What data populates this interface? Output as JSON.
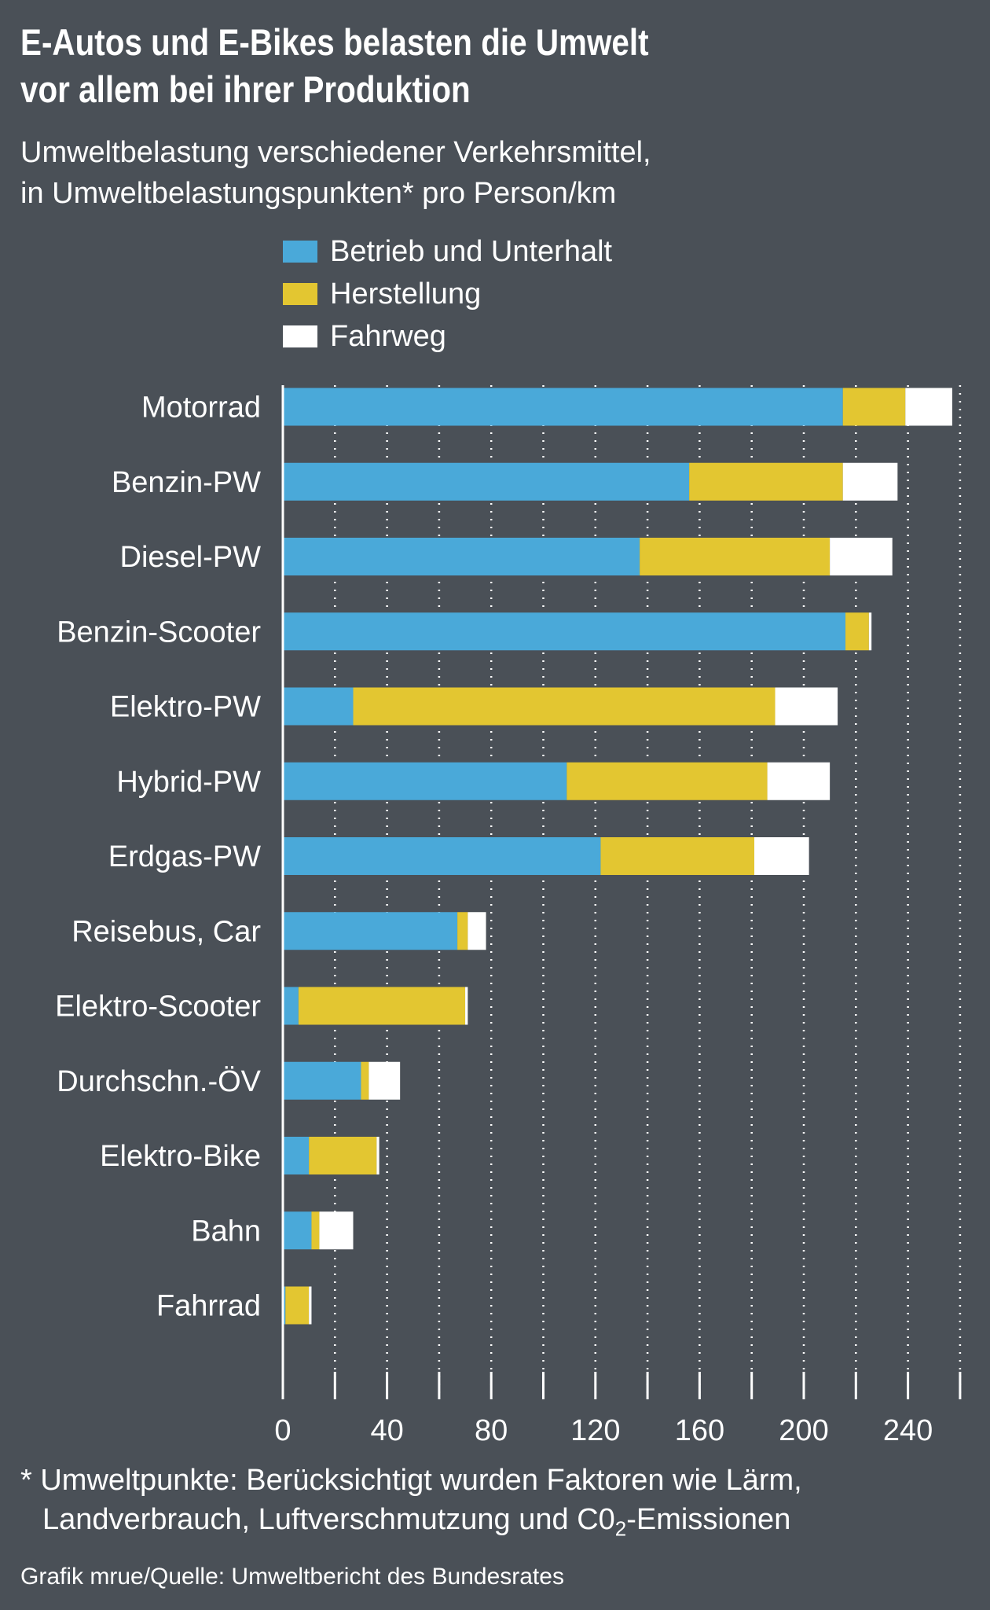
{
  "title_line1": "E-Autos und E-Bikes belasten die Umwelt",
  "title_line2": "vor allem bei ihrer Produktion",
  "subtitle_line1": "Umweltbelastung verschiedener Verkehrsmittel,",
  "subtitle_line2": "in Umweltbelastungspunkten* pro Person/km",
  "legend": [
    {
      "label": "Betrieb und Unterhalt",
      "color": "#4aa9d9"
    },
    {
      "label": "Herstellung",
      "color": "#e3c631"
    },
    {
      "label": "Fahrweg",
      "color": "#ffffff"
    }
  ],
  "footnote_line1": "* Umweltpunkte: Berücksichtigt wurden Faktoren wie Lärm,",
  "footnote_line2_pre": "Landverbrauch, Luftverschmutzung und C0",
  "footnote_line2_sub": "2",
  "footnote_line2_post": "-Emissionen",
  "source": "Grafik mrue/Quelle: Umweltbericht des Bundesrates",
  "chart_data": {
    "type": "bar",
    "orientation": "horizontal",
    "stacked": true,
    "categories": [
      "Motorrad",
      "Benzin-PW",
      "Diesel-PW",
      "Benzin-Scooter",
      "Elektro-PW",
      "Hybrid-PW",
      "Erdgas-PW",
      "Reisebus, Car",
      "Elektro-Scooter",
      "Durchschn.-ÖV",
      "Elektro-Bike",
      "Bahn",
      "Fahrrad"
    ],
    "series": [
      {
        "name": "Betrieb und Unterhalt",
        "color": "#4aa9d9",
        "values": [
          215,
          156,
          137,
          216,
          27,
          109,
          122,
          67,
          6,
          30,
          10,
          11,
          1
        ]
      },
      {
        "name": "Herstellung",
        "color": "#e3c631",
        "values": [
          24,
          59,
          73,
          9,
          162,
          77,
          59,
          4,
          64,
          3,
          26,
          3,
          9
        ]
      },
      {
        "name": "Fahrweg",
        "color": "#ffffff",
        "values": [
          18,
          21,
          24,
          1,
          24,
          24,
          21,
          7,
          1,
          12,
          1,
          13,
          1
        ]
      }
    ],
    "xticks": [
      0,
      40,
      80,
      120,
      160,
      200,
      240
    ],
    "xlim": [
      0,
      260
    ],
    "grid": true,
    "legend_position": "top"
  }
}
